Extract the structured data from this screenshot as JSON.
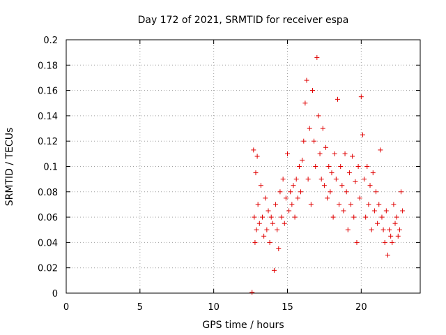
{
  "chart_data": {
    "type": "scatter",
    "title": "Day 172 of 2021, SRMTID for receiver espa",
    "xlabel": "GPS time / hours",
    "ylabel": "SRMTID / TECUs",
    "xlim": [
      0,
      24
    ],
    "ylim": [
      0,
      0.2
    ],
    "xticks": [
      0,
      5,
      10,
      15,
      20
    ],
    "xtick_labels": [
      "0",
      "5",
      "10",
      "15",
      "20"
    ],
    "yticks": [
      0,
      0.02,
      0.04,
      0.06,
      0.08,
      0.1,
      0.12,
      0.14,
      0.16,
      0.18,
      0.2
    ],
    "ytick_labels": [
      "0",
      "0.02",
      "0.04",
      "0.06",
      "0.08",
      "0.1",
      "0.12",
      "0.14",
      "0.16",
      "0.18",
      "0.2"
    ],
    "grid": true,
    "marker": "+",
    "color": "#e00000",
    "series": [
      {
        "name": "SRMTID",
        "marker_shape": "plus",
        "x": [
          12.7,
          12.75,
          12.8,
          12.85,
          12.9,
          12.95,
          13.0,
          13.1,
          13.2,
          13.3,
          13.4,
          13.5,
          13.6,
          13.7,
          13.8,
          13.9,
          14.0,
          14.1,
          14.2,
          14.3,
          14.4,
          14.5,
          14.6,
          14.7,
          14.8,
          14.9,
          15.0,
          15.1,
          15.2,
          15.3,
          15.4,
          15.5,
          15.6,
          15.7,
          15.8,
          15.9,
          16.0,
          16.1,
          16.2,
          16.3,
          16.4,
          16.5,
          16.6,
          16.7,
          16.8,
          16.9,
          17.0,
          17.1,
          17.2,
          17.3,
          17.4,
          17.5,
          17.6,
          17.7,
          17.8,
          17.9,
          18.0,
          18.1,
          18.2,
          18.3,
          18.4,
          18.5,
          18.6,
          18.7,
          18.8,
          18.9,
          19.0,
          19.1,
          19.2,
          19.3,
          19.4,
          19.5,
          19.6,
          19.7,
          19.8,
          19.9,
          20.0,
          20.1,
          20.2,
          20.3,
          20.4,
          20.5,
          20.6,
          20.7,
          20.8,
          20.9,
          21.0,
          21.1,
          21.2,
          21.3,
          21.4,
          21.5,
          21.6,
          21.7,
          21.8,
          21.9,
          22.0,
          22.1,
          22.2,
          22.3,
          22.4,
          22.5,
          22.6,
          22.7,
          22.8
        ],
        "y": [
          0.113,
          0.06,
          0.04,
          0.095,
          0.05,
          0.108,
          0.07,
          0.055,
          0.085,
          0.06,
          0.045,
          0.075,
          0.05,
          0.065,
          0.04,
          0.06,
          0.055,
          0.018,
          0.07,
          0.05,
          0.035,
          0.08,
          0.06,
          0.09,
          0.055,
          0.075,
          0.11,
          0.065,
          0.08,
          0.07,
          0.085,
          0.06,
          0.09,
          0.075,
          0.1,
          0.08,
          0.105,
          0.12,
          0.15,
          0.168,
          0.09,
          0.13,
          0.07,
          0.16,
          0.12,
          0.1,
          0.186,
          0.14,
          0.11,
          0.09,
          0.13,
          0.085,
          0.115,
          0.075,
          0.1,
          0.08,
          0.095,
          0.06,
          0.11,
          0.09,
          0.153,
          0.07,
          0.1,
          0.085,
          0.065,
          0.11,
          0.08,
          0.05,
          0.095,
          0.07,
          0.108,
          0.06,
          0.088,
          0.04,
          0.1,
          0.075,
          0.155,
          0.125,
          0.09,
          0.06,
          0.1,
          0.07,
          0.085,
          0.05,
          0.095,
          0.065,
          0.08,
          0.055,
          0.07,
          0.113,
          0.06,
          0.05,
          0.04,
          0.065,
          0.03,
          0.05,
          0.045,
          0.04,
          0.07,
          0.055,
          0.06,
          0.045,
          0.05,
          0.08,
          0.065
        ]
      }
    ],
    "annotations": [
      {
        "name": "zero-marker",
        "x": 12.6,
        "y": 0.0
      }
    ]
  }
}
